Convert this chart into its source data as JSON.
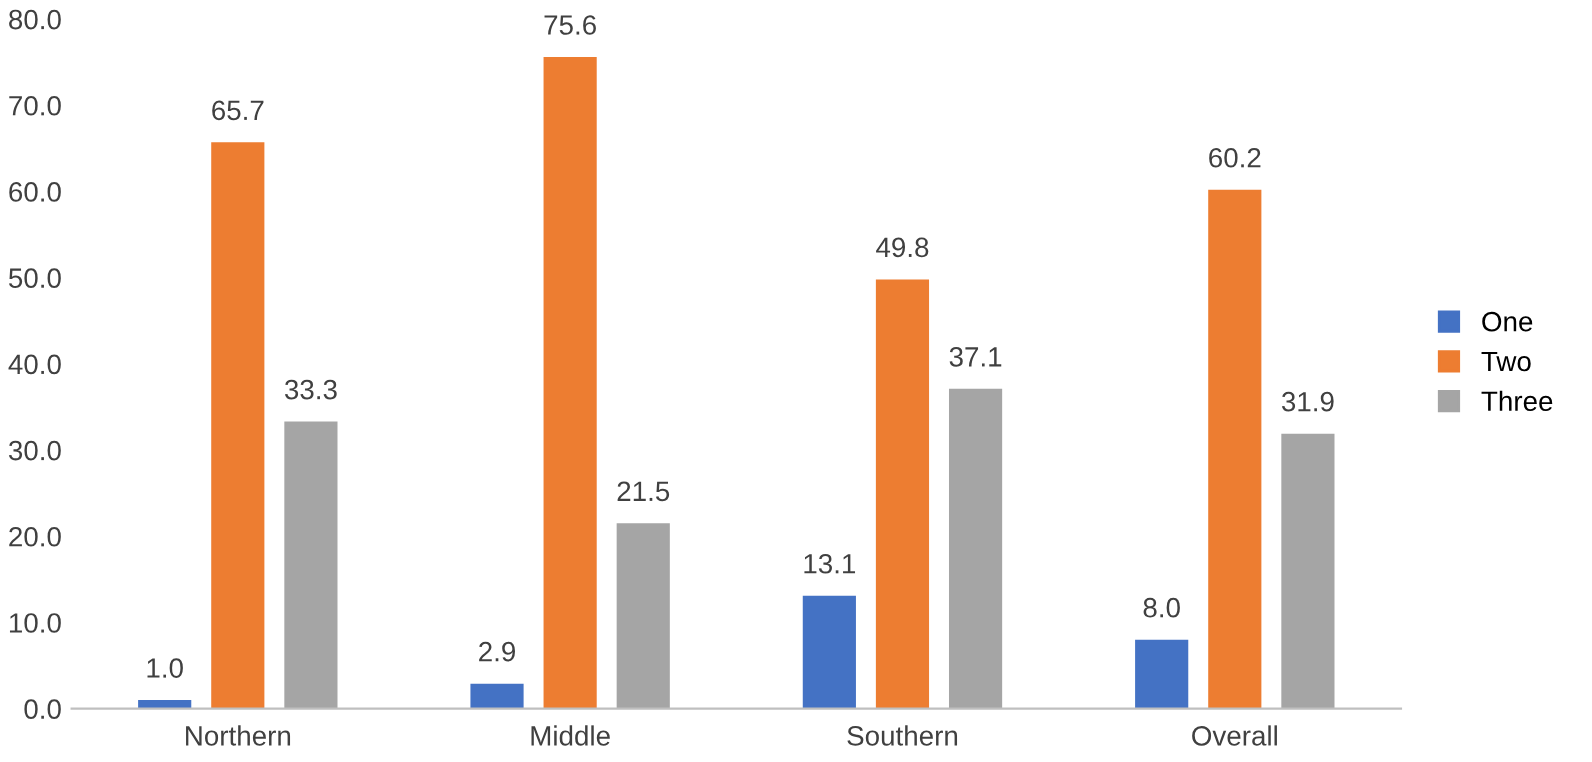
{
  "chart_data": {
    "type": "bar",
    "categories": [
      "Northern",
      "Middle",
      "Southern",
      "Overall"
    ],
    "series": [
      {
        "name": "One",
        "color": "#4472c4",
        "values": [
          1.0,
          2.9,
          13.1,
          8.0
        ],
        "value_labels": [
          "1.0",
          "2.9",
          "13.1",
          "8.0"
        ]
      },
      {
        "name": "Two",
        "color": "#ed7d31",
        "values": [
          65.7,
          75.6,
          49.8,
          60.2
        ],
        "value_labels": [
          "65.7",
          "75.6",
          "49.8",
          "60.2"
        ]
      },
      {
        "name": "Three",
        "color": "#a5a5a5",
        "values": [
          33.3,
          21.5,
          37.1,
          31.9
        ],
        "value_labels": [
          "33.3",
          "21.5",
          "37.1",
          "31.9"
        ]
      }
    ],
    "ylim": [
      0,
      80
    ],
    "yticks": [
      {
        "value": 0,
        "label": "0.0"
      },
      {
        "value": 10,
        "label": "10.0"
      },
      {
        "value": 20,
        "label": "20.0"
      },
      {
        "value": 30,
        "label": "30.0"
      },
      {
        "value": 40,
        "label": "40.0"
      },
      {
        "value": 50,
        "label": "50.0"
      },
      {
        "value": 60,
        "label": "60.0"
      },
      {
        "value": 70,
        "label": "70.0"
      },
      {
        "value": 80,
        "label": "80.0"
      }
    ],
    "grid": false,
    "legend": "right"
  }
}
